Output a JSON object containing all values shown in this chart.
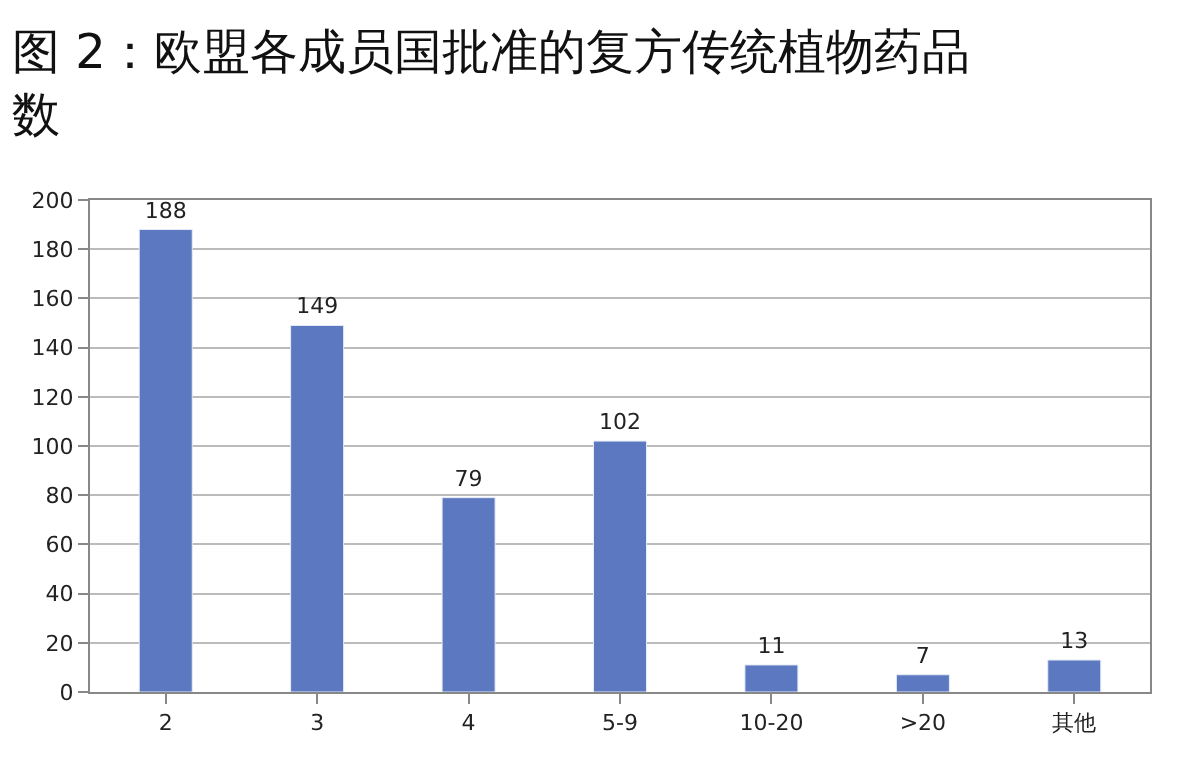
{
  "chart_data": {
    "type": "bar",
    "title": "图 2：欧盟各成员国批准的复方传统植物药品数",
    "categories": [
      "2",
      "3",
      "4",
      "5-9",
      "10-20",
      ">20",
      "其他"
    ],
    "values": [
      188,
      149,
      79,
      102,
      11,
      7,
      13
    ],
    "color": "#5b78c0",
    "ylim": [
      0,
      200
    ],
    "yticks": [
      0,
      20,
      40,
      60,
      80,
      100,
      120,
      140,
      160,
      180,
      200
    ],
    "grid": "y",
    "data_labels": true
  }
}
